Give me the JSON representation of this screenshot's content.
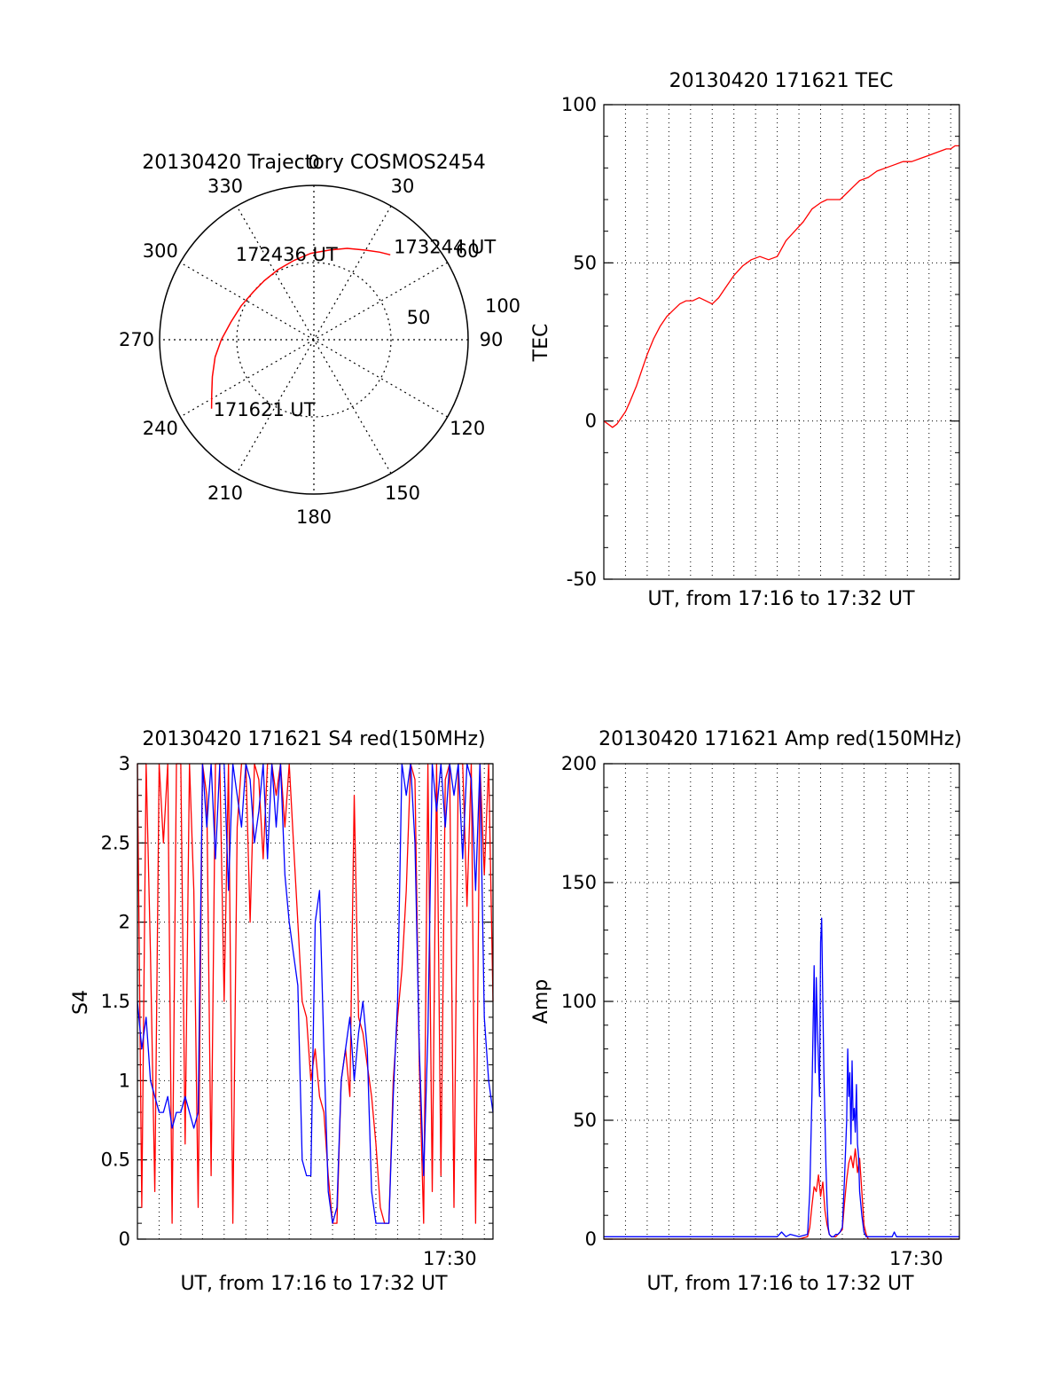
{
  "colors": {
    "red": "#ff0000",
    "blue": "#0000ff",
    "axis": "#000000",
    "grid": "#000000"
  },
  "chart_data": [
    {
      "id": "polar",
      "type": "scatter",
      "title": "20130420 Trajectory COSMOS2454",
      "azimuth_labels": [
        "0",
        "30",
        "60",
        "90",
        "120",
        "150",
        "180",
        "210",
        "240",
        "270",
        "300",
        "330"
      ],
      "radial_labels": [
        "50",
        "100"
      ],
      "rlim": [
        0,
        100
      ],
      "grid": "dotted",
      "series": [
        {
          "color": "red",
          "points_az_r": [
            [
              236,
              80
            ],
            [
              242,
              75
            ],
            [
              250,
              70
            ],
            [
              260,
              65
            ],
            [
              270,
              60
            ],
            [
              282,
              55
            ],
            [
              295,
              52
            ],
            [
              308,
              50
            ],
            [
              320,
              50
            ],
            [
              333,
              51
            ],
            [
              346,
              53
            ],
            [
              358,
              56
            ],
            [
              10,
              59
            ],
            [
              20,
              63
            ],
            [
              30,
              67
            ],
            [
              37,
              71
            ],
            [
              42,
              74
            ]
          ]
        }
      ],
      "annotations": [
        {
          "text": "171621 UT",
          "az": 236,
          "r": 80
        },
        {
          "text": "172436 UT",
          "az": 333,
          "r": 51
        },
        {
          "text": "173244 UT",
          "az": 42,
          "r": 74
        }
      ]
    },
    {
      "id": "tec",
      "type": "line",
      "title": "20130420 171621 TEC",
      "xlabel": "UT, from 17:16 to 17:32 UT",
      "ylabel": "TEC",
      "xlim": [
        0,
        16.4
      ],
      "ylim": [
        -50,
        100
      ],
      "yticks": [
        "100",
        "50",
        "0",
        "-50"
      ],
      "grid": "dotted",
      "series": [
        {
          "color": "red",
          "x": [
            0.0,
            0.2,
            0.4,
            0.6,
            0.8,
            1.0,
            1.2,
            1.5,
            1.8,
            2.0,
            2.3,
            2.6,
            2.9,
            3.2,
            3.5,
            3.8,
            4.1,
            4.4,
            4.7,
            5.0,
            5.3,
            5.6,
            6.0,
            6.4,
            6.8,
            7.2,
            7.6,
            8.0,
            8.4,
            8.8,
            9.2,
            9.6,
            9.8,
            10.0,
            10.3,
            10.6,
            10.9,
            11.2,
            11.5,
            11.8,
            12.2,
            12.6,
            13.0,
            13.4,
            13.8,
            14.2,
            14.6,
            15.0,
            15.4,
            15.8,
            16.0,
            16.2,
            16.4
          ],
          "y": [
            0,
            -1,
            -2,
            -1,
            1,
            3,
            6,
            11,
            17,
            21,
            26,
            30,
            33,
            35,
            37,
            38,
            38,
            39,
            38,
            37,
            39,
            42,
            46,
            49,
            51,
            52,
            51,
            52,
            57,
            60,
            63,
            67,
            68,
            69,
            70,
            70,
            70,
            72,
            74,
            76,
            77,
            79,
            80,
            81,
            82,
            82,
            83,
            84,
            85,
            86,
            86,
            87,
            87
          ]
        }
      ]
    },
    {
      "id": "s4",
      "type": "line",
      "title": "20130420 171621 S4 red(150MHz)",
      "xlabel": "UT, from 17:16 to 17:32 UT",
      "ylabel": "S4",
      "xlim": [
        0,
        16.4
      ],
      "ylim": [
        0,
        3
      ],
      "yticks": [
        "0",
        "0.5",
        "1",
        "1.5",
        "2",
        "2.5",
        "3"
      ],
      "xtick_label": "17:30",
      "xtick_label_at": 14,
      "grid": "dotted",
      "series": [
        {
          "color": "red",
          "x": [
            0.0,
            0.2,
            0.4,
            0.6,
            0.8,
            1.0,
            1.2,
            1.4,
            1.6,
            1.8,
            2.0,
            2.2,
            2.4,
            2.6,
            2.8,
            3.0,
            3.2,
            3.4,
            3.6,
            3.8,
            4.0,
            4.2,
            4.4,
            4.6,
            4.8,
            5.0,
            5.2,
            5.4,
            5.6,
            5.8,
            6.0,
            6.2,
            6.4,
            6.6,
            6.8,
            7.0,
            7.2,
            7.4,
            7.6,
            7.8,
            8.0,
            8.2,
            8.4,
            8.6,
            8.8,
            9.0,
            9.2,
            9.4,
            9.6,
            9.8,
            10.0,
            10.2,
            10.4,
            10.6,
            10.8,
            11.0,
            11.2,
            11.4,
            11.6,
            11.8,
            12.0,
            12.2,
            12.4,
            12.6,
            12.8,
            13.0,
            13.2,
            13.4,
            13.6,
            13.8,
            14.0,
            14.2,
            14.4,
            14.6,
            14.8,
            15.0,
            15.2,
            15.4,
            15.6,
            15.8,
            16.0,
            16.2,
            16.4
          ],
          "y": [
            3.0,
            0.2,
            3.0,
            1.8,
            0.3,
            3.0,
            2.5,
            3.0,
            0.1,
            3.0,
            3.0,
            0.6,
            3.0,
            2.2,
            0.2,
            3.0,
            2.8,
            0.4,
            3.0,
            3.0,
            1.5,
            3.0,
            0.1,
            2.6,
            3.0,
            3.0,
            2.0,
            3.0,
            2.9,
            2.4,
            3.0,
            3.0,
            2.8,
            3.0,
            2.6,
            3.0,
            2.5,
            2.0,
            1.5,
            1.4,
            1.0,
            1.2,
            0.9,
            0.8,
            0.4,
            0.1,
            0.1,
            1.0,
            1.2,
            0.9,
            2.8,
            1.4,
            1.3,
            1.1,
            0.9,
            0.6,
            0.2,
            0.1,
            0.1,
            1.0,
            1.4,
            1.7,
            2.2,
            3.0,
            2.9,
            1.1,
            0.1,
            3.0,
            0.3,
            3.0,
            0.4,
            2.9,
            3.0,
            0.2,
            3.0,
            3.0,
            2.1,
            3.0,
            0.1,
            3.0,
            2.3,
            3.0,
            1.5
          ]
        },
        {
          "color": "blue",
          "x": [
            0.0,
            0.2,
            0.4,
            0.6,
            0.8,
            1.0,
            1.2,
            1.4,
            1.6,
            1.8,
            2.0,
            2.2,
            2.4,
            2.6,
            2.8,
            3.0,
            3.2,
            3.4,
            3.6,
            3.8,
            4.0,
            4.2,
            4.4,
            4.6,
            4.8,
            5.0,
            5.2,
            5.4,
            5.6,
            5.8,
            6.0,
            6.2,
            6.4,
            6.6,
            6.8,
            7.0,
            7.2,
            7.4,
            7.6,
            7.8,
            8.0,
            8.2,
            8.4,
            8.6,
            8.8,
            9.0,
            9.2,
            9.4,
            9.6,
            9.8,
            10.0,
            10.2,
            10.4,
            10.6,
            10.8,
            11.0,
            11.2,
            11.4,
            11.6,
            11.8,
            12.0,
            12.2,
            12.4,
            12.6,
            12.8,
            13.0,
            13.2,
            13.4,
            13.6,
            13.8,
            14.0,
            14.2,
            14.4,
            14.6,
            14.8,
            15.0,
            15.2,
            15.4,
            15.6,
            15.8,
            16.0,
            16.2,
            16.4
          ],
          "y": [
            1.5,
            1.2,
            1.4,
            1.0,
            0.9,
            0.8,
            0.8,
            0.9,
            0.7,
            0.8,
            0.8,
            0.9,
            0.8,
            0.7,
            0.8,
            3.0,
            2.6,
            3.0,
            2.4,
            3.0,
            3.0,
            2.2,
            3.0,
            2.8,
            2.6,
            3.0,
            2.9,
            2.5,
            2.7,
            3.0,
            2.4,
            3.0,
            2.6,
            3.0,
            2.3,
            2.0,
            1.8,
            1.6,
            0.5,
            0.4,
            0.4,
            2.0,
            2.2,
            1.2,
            0.3,
            0.1,
            0.2,
            1.0,
            1.2,
            1.4,
            1.0,
            1.3,
            1.5,
            1.2,
            0.3,
            0.1,
            0.1,
            0.1,
            0.1,
            0.9,
            1.5,
            3.0,
            2.8,
            3.0,
            2.5,
            1.2,
            0.4,
            1.3,
            3.0,
            2.7,
            3.0,
            2.6,
            3.0,
            2.8,
            3.0,
            2.4,
            3.0,
            2.9,
            2.2,
            3.0,
            1.4,
            1.0,
            0.8
          ]
        }
      ]
    },
    {
      "id": "amp",
      "type": "line",
      "title": "20130420 171621 Amp red(150MHz)",
      "xlabel": "UT, from 17:16 to 17:32 UT",
      "ylabel": "Amp",
      "xlim": [
        0,
        16.4
      ],
      "ylim": [
        0,
        200
      ],
      "yticks": [
        "0",
        "50",
        "100",
        "150",
        "200"
      ],
      "xtick_label": "17:30",
      "xtick_label_at": 14,
      "grid": "dotted",
      "series": [
        {
          "color": "red",
          "x": [
            0.0,
            9.0,
            9.4,
            9.5,
            9.6,
            9.7,
            9.8,
            9.9,
            10.0,
            10.1,
            10.2,
            10.3,
            10.4,
            10.5,
            10.6,
            10.7,
            10.8,
            10.9,
            11.0,
            11.1,
            11.2,
            11.3,
            11.4,
            11.5,
            11.6,
            11.7,
            11.8,
            11.9,
            12.0,
            12.1,
            12.2,
            16.4
          ],
          "y": [
            0,
            0,
            1,
            5,
            14,
            22,
            20,
            27,
            18,
            24,
            12,
            6,
            2,
            1,
            1,
            1,
            2,
            3,
            4,
            15,
            25,
            32,
            35,
            30,
            38,
            28,
            34,
            20,
            6,
            2,
            0,
            0
          ]
        },
        {
          "color": "blue",
          "x": [
            0.0,
            8.0,
            8.2,
            8.4,
            8.6,
            9.0,
            9.4,
            9.5,
            9.6,
            9.7,
            9.75,
            9.8,
            9.85,
            9.9,
            9.95,
            10.0,
            10.05,
            10.1,
            10.15,
            10.2,
            10.25,
            10.3,
            10.35,
            10.4,
            10.5,
            10.6,
            10.7,
            10.8,
            10.9,
            11.0,
            11.1,
            11.2,
            11.25,
            11.3,
            11.35,
            11.4,
            11.45,
            11.5,
            11.55,
            11.6,
            11.65,
            11.7,
            11.75,
            11.8,
            11.9,
            12.0,
            12.1,
            12.3,
            13.3,
            13.4,
            13.5,
            14.0,
            16.4
          ],
          "y": [
            1,
            1,
            3,
            1,
            2,
            1,
            2,
            20,
            60,
            115,
            70,
            110,
            90,
            75,
            60,
            125,
            135,
            100,
            70,
            50,
            30,
            15,
            5,
            2,
            1,
            1,
            2,
            2,
            3,
            5,
            25,
            50,
            80,
            60,
            70,
            40,
            75,
            50,
            55,
            45,
            65,
            40,
            35,
            20,
            10,
            3,
            1,
            1,
            1,
            3,
            1,
            1,
            1
          ]
        }
      ]
    }
  ]
}
